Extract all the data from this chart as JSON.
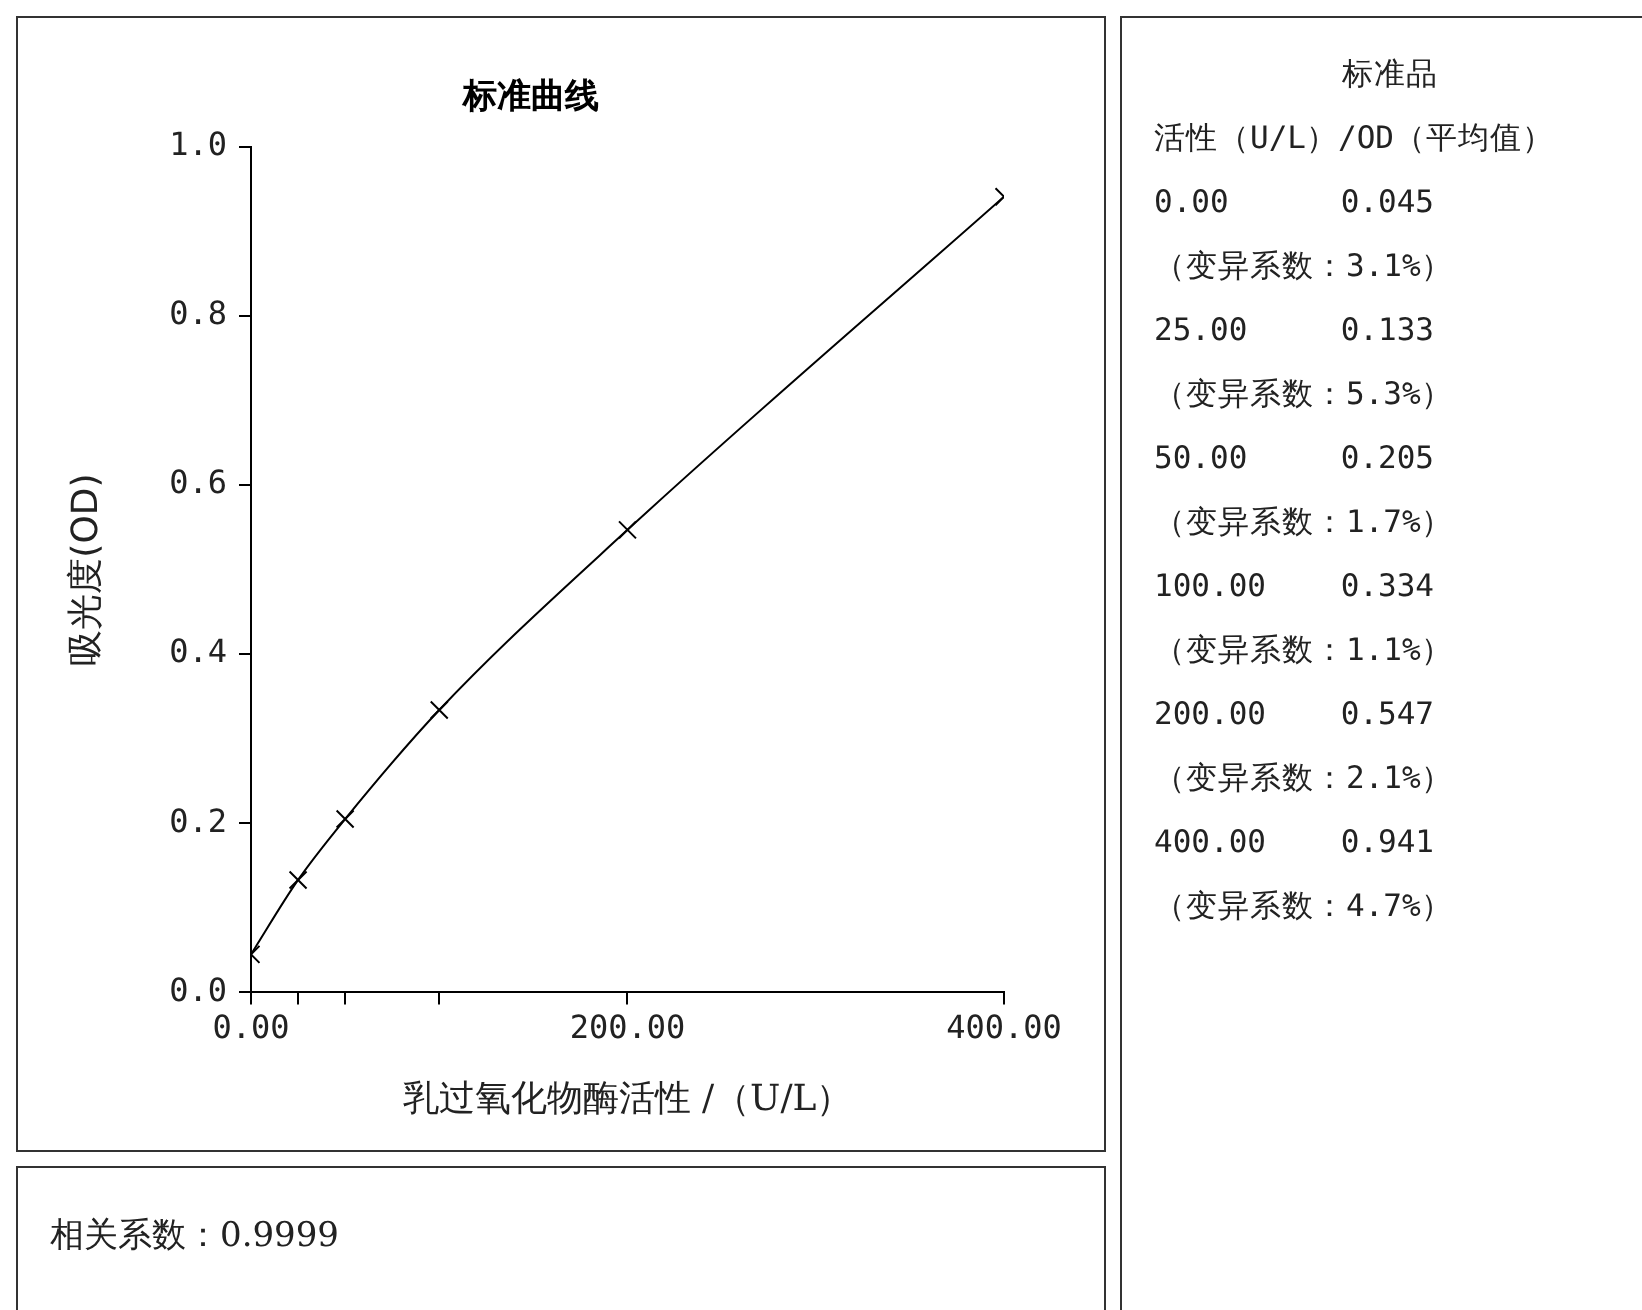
{
  "chart_data": {
    "type": "line",
    "title": "标准曲线",
    "xlabel": "乳过氧化物酶活性 /（U/L）",
    "ylabel": "吸光度(OD)",
    "x": [
      0,
      25,
      50,
      100,
      200,
      400
    ],
    "series": [
      {
        "color": "#000000",
        "values": [
          0.045,
          0.133,
          0.205,
          0.334,
          0.547,
          0.941
        ]
      }
    ],
    "xlim": [
      0,
      400
    ],
    "xticks": [
      {
        "value": 0,
        "label": "0.00"
      },
      {
        "value": 25,
        "label": null
      },
      {
        "value": 50,
        "label": null
      },
      {
        "value": 100,
        "label": null
      },
      {
        "value": 200,
        "label": "200.00"
      },
      {
        "value": 400,
        "label": "400.00"
      }
    ],
    "ylim": [
      0,
      1
    ],
    "yticks": [
      {
        "value": 0,
        "label": "0.0"
      },
      {
        "value": 0.2,
        "label": "0.2"
      },
      {
        "value": 0.4,
        "label": "0.4"
      },
      {
        "value": 0.6,
        "label": "0.6"
      },
      {
        "value": 0.8,
        "label": "0.8"
      },
      {
        "value": 1,
        "label": "1.0"
      }
    ],
    "grid": false,
    "legend": false,
    "marker": "cross",
    "line_style": "solid",
    "annotations": [
      "标准品",
      "活性（U/L）/OD（平均值）",
      "0.00      0.045",
      "（变异系数：3.1%）",
      "25.00     0.133",
      "（变异系数：5.3%）",
      "50.00     0.205",
      "（变异系数：1.7%）",
      "100.00    0.334",
      "（变异系数：1.1%）",
      "200.00    0.547",
      "（变异系数：2.1%）",
      "400.00    0.941",
      "（变异系数：4.7%）",
      "相关系数：0.9999"
    ]
  }
}
